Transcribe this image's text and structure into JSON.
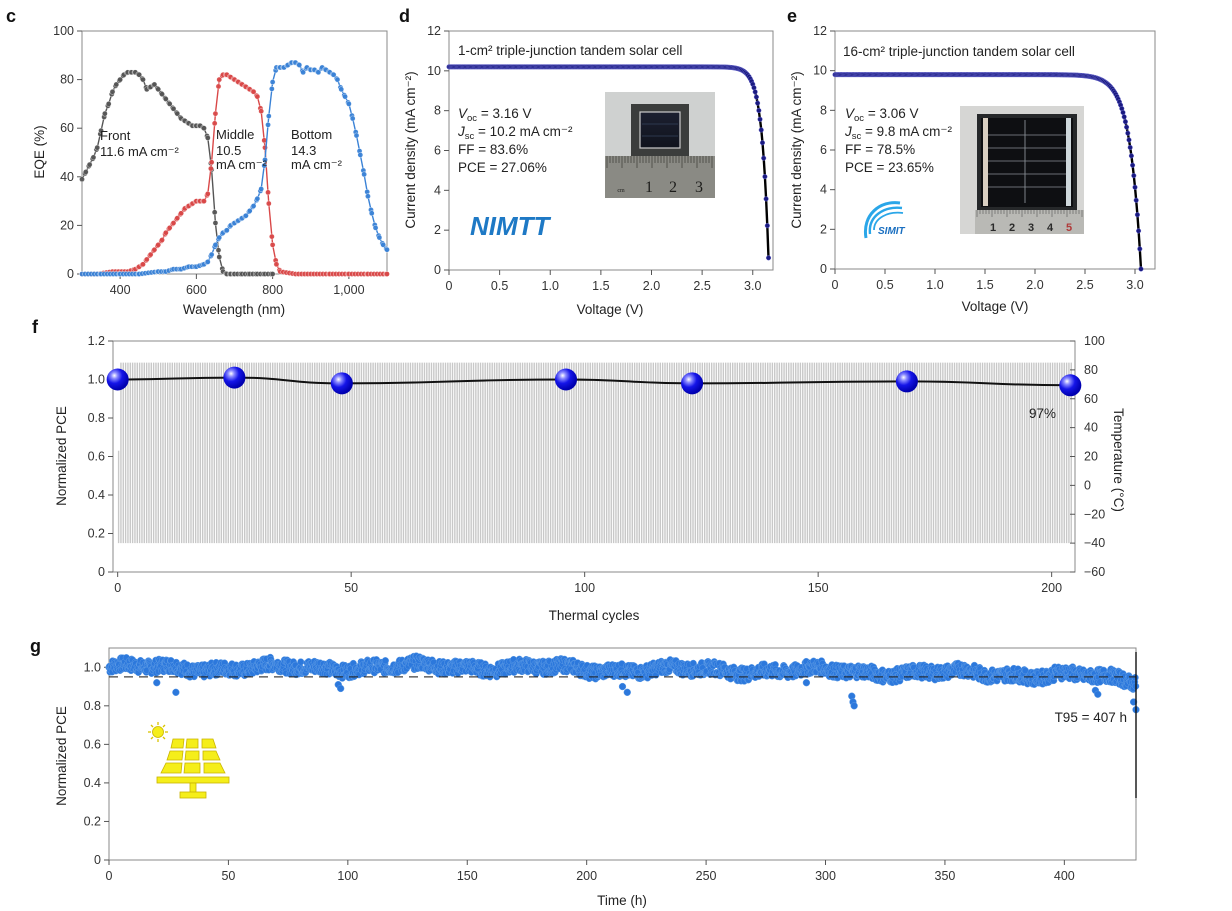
{
  "chart_data": [
    {
      "id": "c",
      "panel_label": "c",
      "type": "line",
      "xlabel": "Wavelength (nm)",
      "ylabel": "EQE (%)",
      "xlim": [
        300,
        1100
      ],
      "ylim": [
        0,
        100
      ],
      "xticks": [
        400,
        600,
        800,
        1000
      ],
      "xtick_labels": [
        "400",
        "600",
        "800",
        "1,000"
      ],
      "yticks": [
        0,
        20,
        40,
        60,
        80,
        100
      ],
      "ytick_labels": [
        "0",
        "20",
        "40",
        "60",
        "80",
        "100"
      ],
      "series": [
        {
          "name": "Front",
          "color": "#555555",
          "annotation": [
            "Front",
            "11.6 mA cm⁻²"
          ],
          "x": [
            300,
            310,
            320,
            330,
            340,
            350,
            360,
            370,
            380,
            390,
            400,
            410,
            420,
            430,
            440,
            450,
            460,
            470,
            480,
            490,
            500,
            510,
            520,
            530,
            540,
            550,
            560,
            570,
            580,
            590,
            600,
            610,
            620,
            630,
            640,
            650,
            660,
            670,
            680,
            690,
            700,
            720,
            740,
            760,
            780,
            800
          ],
          "y": [
            39,
            42,
            45,
            48,
            52,
            59,
            66,
            70,
            75,
            78,
            80,
            82,
            83,
            83,
            83,
            82,
            80,
            76,
            77,
            78,
            76,
            74,
            72,
            70,
            68,
            66,
            64,
            63,
            62,
            61,
            61,
            61,
            60,
            56,
            43,
            21,
            7,
            1,
            0,
            0,
            0,
            0,
            0,
            0,
            0,
            0
          ]
        },
        {
          "name": "Middle",
          "color": "#d94848",
          "annotation": [
            "Middle",
            "10.5",
            "mA cm⁻²"
          ],
          "x": [
            300,
            340,
            380,
            420,
            440,
            450,
            460,
            470,
            480,
            490,
            500,
            510,
            520,
            530,
            540,
            550,
            560,
            570,
            580,
            590,
            600,
            610,
            620,
            630,
            640,
            650,
            660,
            670,
            680,
            690,
            700,
            710,
            720,
            730,
            740,
            750,
            760,
            770,
            780,
            790,
            800,
            810,
            820,
            860,
            900,
            950,
            1000,
            1050,
            1100
          ],
          "y": [
            0,
            0,
            1,
            1,
            2,
            3,
            4,
            6,
            8,
            10,
            12,
            14,
            17,
            19,
            21,
            23,
            25,
            27,
            28,
            29,
            30,
            30,
            30,
            33,
            46,
            66,
            80,
            82,
            82,
            81,
            80,
            79,
            78,
            77,
            76,
            75,
            73,
            67,
            52,
            29,
            12,
            4,
            1,
            0,
            0,
            0,
            0,
            0,
            0
          ]
        },
        {
          "name": "Bottom",
          "color": "#3a82d6",
          "annotation": [
            "Bottom",
            "14.3",
            "mA cm⁻²"
          ],
          "x": [
            300,
            350,
            400,
            450,
            500,
            520,
            540,
            560,
            580,
            600,
            620,
            630,
            640,
            650,
            660,
            670,
            680,
            690,
            700,
            710,
            720,
            730,
            740,
            750,
            760,
            770,
            780,
            790,
            800,
            810,
            820,
            830,
            840,
            850,
            860,
            870,
            880,
            890,
            900,
            910,
            920,
            930,
            940,
            950,
            960,
            970,
            980,
            990,
            1000,
            1010,
            1020,
            1030,
            1040,
            1050,
            1060,
            1070,
            1080,
            1090,
            1100
          ],
          "y": [
            0,
            0,
            0,
            0,
            1,
            1,
            2,
            2,
            3,
            3,
            4,
            5,
            8,
            12,
            15,
            17,
            18,
            20,
            21,
            22,
            23,
            24,
            26,
            28,
            31,
            35,
            47,
            65,
            79,
            85,
            85,
            85,
            86,
            87,
            87,
            86,
            83,
            85,
            84,
            84,
            83,
            85,
            84,
            83,
            82,
            80,
            76,
            73,
            70,
            64,
            57,
            49,
            41,
            32,
            25,
            19,
            15,
            12,
            10
          ]
        }
      ]
    },
    {
      "id": "d",
      "panel_label": "d",
      "type": "scatter",
      "title": "1-cm² triple-junction tandem solar cell",
      "xlabel": "Voltage (V)",
      "ylabel": "Current density (mA cm⁻²)",
      "xlim": [
        0,
        3.2
      ],
      "ylim": [
        0,
        12
      ],
      "xticks": [
        0,
        0.5,
        1.0,
        1.5,
        2.0,
        2.5,
        3.0
      ],
      "xtick_labels": [
        "0",
        "0.5",
        "1.0",
        "1.5",
        "2.0",
        "2.5",
        "3.0"
      ],
      "yticks": [
        0,
        2,
        4,
        6,
        8,
        10,
        12
      ],
      "ytick_labels": [
        "0",
        "2",
        "4",
        "6",
        "8",
        "10",
        "12"
      ],
      "color": "#1a1a80",
      "jv": {
        "voc": 3.16,
        "jsc": 10.2,
        "knee_v": 2.55,
        "max_v": 3.2
      },
      "metrics": [
        {
          "name": "V",
          "sub": "oc",
          "value": " = 3.16 V"
        },
        {
          "name": "J",
          "sub": "sc",
          "value": " = 10.2 mA cm⁻²"
        },
        {
          "name": "FF",
          "sub": "",
          "value": " = 83.6%"
        },
        {
          "name": "PCE",
          "sub": "",
          "value": " = 27.06%"
        }
      ],
      "logo": "NIMTT",
      "inset_ruler_labels": [
        "cm",
        "1",
        "2",
        "3"
      ]
    },
    {
      "id": "e",
      "panel_label": "e",
      "type": "scatter",
      "title": "16-cm² triple-junction tandem solar cell",
      "xlabel": "Voltage (V)",
      "ylabel": "Current density (mA cm⁻²)",
      "xlim": [
        0,
        3.2
      ],
      "ylim": [
        0,
        12
      ],
      "xticks": [
        0,
        0.5,
        1.0,
        1.5,
        2.0,
        2.5,
        3.0
      ],
      "xtick_labels": [
        "0",
        "0.5",
        "1.0",
        "1.5",
        "2.0",
        "2.5",
        "3.0"
      ],
      "yticks": [
        0,
        2,
        4,
        6,
        8,
        10,
        12
      ],
      "ytick_labels": [
        "0",
        "2",
        "4",
        "6",
        "8",
        "10",
        "12"
      ],
      "color": "#1a1a80",
      "jv": {
        "voc": 3.06,
        "jsc": 9.8,
        "knee_v": 2.2,
        "max_v": 3.2
      },
      "metrics": [
        {
          "name": "V",
          "sub": "oc",
          "value": " = 3.06 V"
        },
        {
          "name": "J",
          "sub": "sc",
          "value": " = 9.8 mA cm⁻²"
        },
        {
          "name": "FF",
          "sub": "",
          "value": " = 78.5%"
        },
        {
          "name": "PCE",
          "sub": "",
          "value": " = 23.65%"
        }
      ],
      "logo": "SIMIT",
      "inset_ruler_labels": [
        "1",
        "2",
        "3",
        "4",
        "5"
      ]
    },
    {
      "id": "f",
      "panel_label": "f",
      "type": "line",
      "xlabel": "Thermal cycles",
      "ylabel": "Normalized PCE",
      "ylabel_right": "Temperature (°C)",
      "xlim": [
        -1,
        205
      ],
      "ylim": [
        0,
        1.2
      ],
      "ylim_right": [
        -60,
        100
      ],
      "xticks": [
        0,
        50,
        100,
        150,
        200
      ],
      "xtick_labels": [
        "0",
        "50",
        "100",
        "150",
        "200"
      ],
      "yticks": [
        0,
        0.2,
        0.4,
        0.6,
        0.8,
        1.0,
        1.2
      ],
      "ytick_labels": [
        "0",
        "0.2",
        "0.4",
        "0.6",
        "0.8",
        "1.0",
        "1.2"
      ],
      "yticks_right": [
        -60,
        -40,
        -20,
        0,
        20,
        40,
        60,
        80,
        100
      ],
      "ytick_labels_right": [
        "−60",
        "−40",
        "−20",
        "0",
        "20",
        "40",
        "60",
        "80",
        "100"
      ],
      "pce_points": {
        "x": [
          0,
          25,
          48,
          96,
          123,
          169,
          204
        ],
        "y": [
          1.0,
          1.01,
          0.98,
          1.0,
          0.98,
          0.99,
          0.97
        ]
      },
      "temperature_cycle": {
        "count": 205,
        "max": 85,
        "min": -40
      },
      "annotation": "97%",
      "marker_color": "#1010e0",
      "line_color": "#111111",
      "bar_color": "#c8c8c8"
    },
    {
      "id": "g",
      "panel_label": "g",
      "type": "scatter",
      "xlabel": "Time (h)",
      "ylabel": "Normalized PCE",
      "xlim": [
        0,
        430
      ],
      "ylim": [
        0,
        1.1
      ],
      "xticks": [
        0,
        50,
        100,
        150,
        200,
        250,
        300,
        350,
        400
      ],
      "xtick_labels": [
        "0",
        "50",
        "100",
        "150",
        "200",
        "250",
        "300",
        "350",
        "400"
      ],
      "yticks": [
        0,
        0.2,
        0.4,
        0.6,
        0.8,
        1.0
      ],
      "ytick_labels": [
        "0",
        "0.2",
        "0.4",
        "0.6",
        "0.8",
        "1.0"
      ],
      "reference_line": 0.95,
      "annotation": "T95 = 407 h",
      "trend": {
        "x": [
          0,
          50,
          100,
          150,
          200,
          250,
          300,
          350,
          400,
          430
        ],
        "y": [
          1.0,
          0.995,
          1.0,
          1.005,
          0.99,
          0.985,
          0.98,
          0.97,
          0.96,
          0.93
        ]
      },
      "outliers": {
        "x": [
          20,
          28,
          96,
          97,
          215,
          217,
          292,
          311,
          311.5,
          312,
          413,
          414,
          429,
          430
        ],
        "y": [
          0.92,
          0.87,
          0.91,
          0.89,
          0.9,
          0.87,
          0.92,
          0.85,
          0.82,
          0.8,
          0.88,
          0.86,
          0.82,
          0.78
        ]
      },
      "color": "#2c78dc"
    }
  ]
}
